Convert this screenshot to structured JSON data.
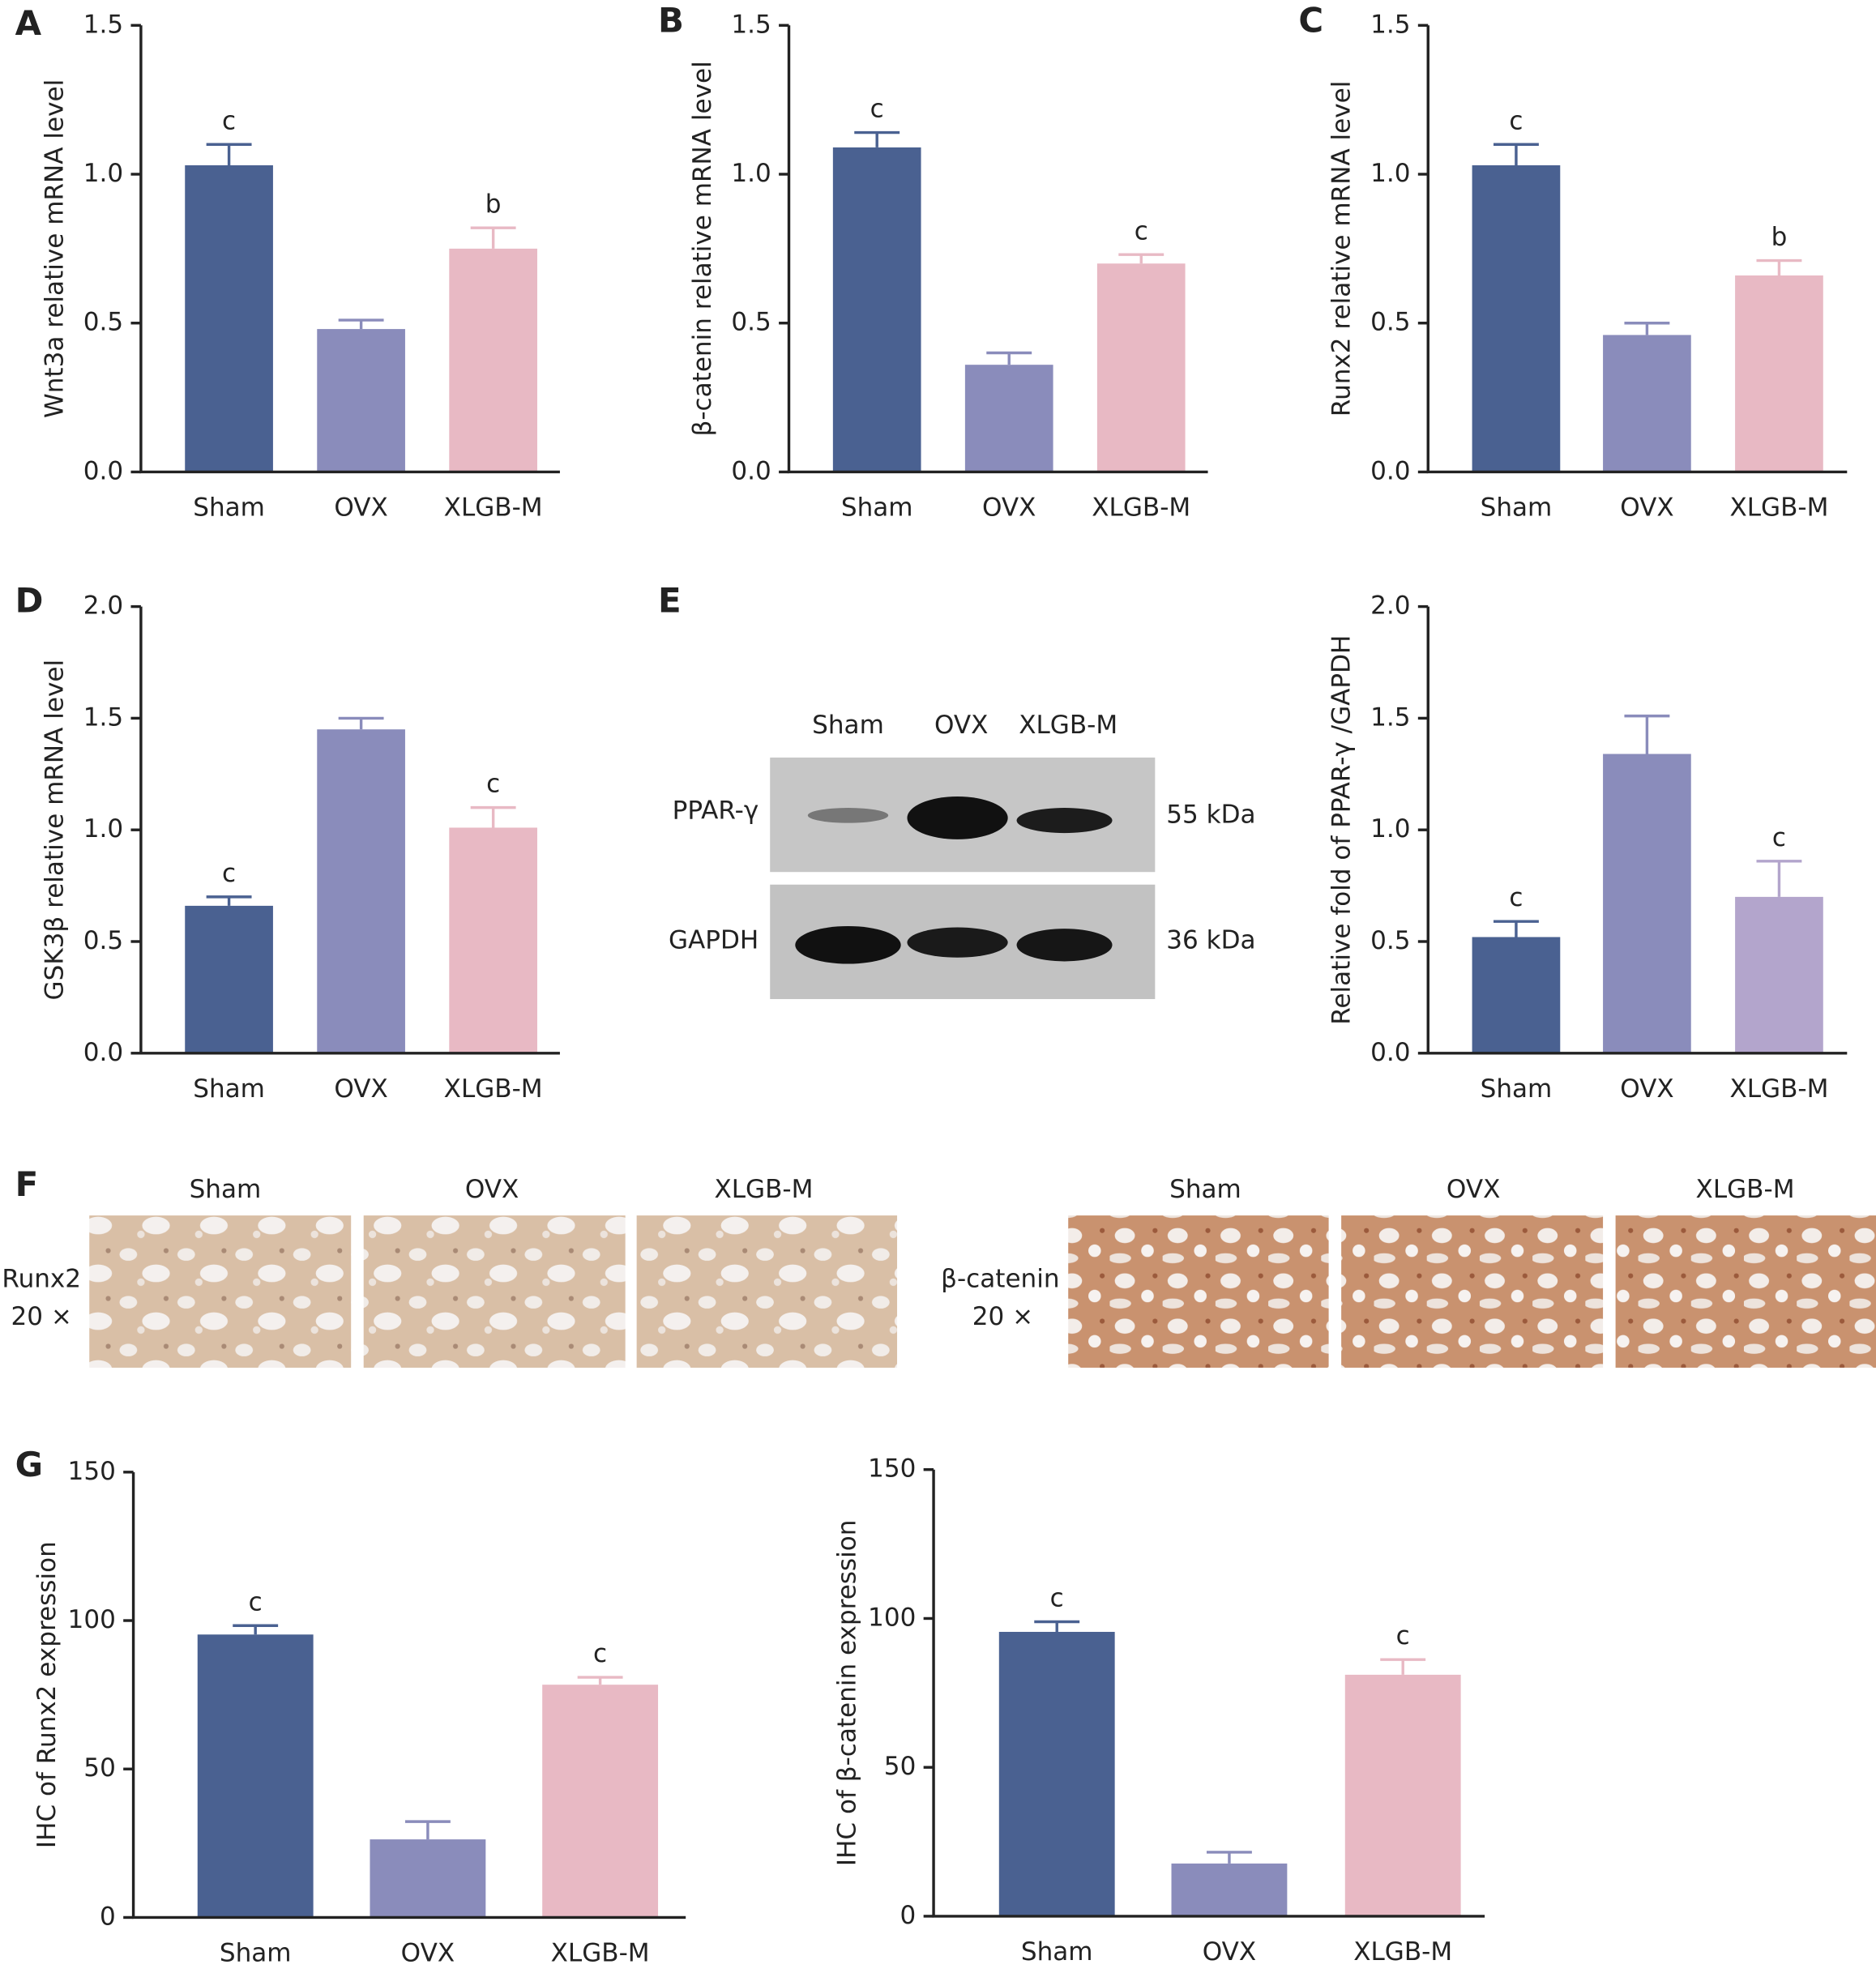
{
  "panel_labels": [
    "A",
    "B",
    "C",
    "D",
    "E",
    "F",
    "G"
  ],
  "chart_data": [
    {
      "type": "bar",
      "y_label": "Wnt3a relative mRNA level",
      "categories": [
        "Sham",
        "OVX",
        "XLGB-M"
      ],
      "values": [
        1.03,
        0.48,
        0.75
      ],
      "errors": [
        0.07,
        0.03,
        0.07
      ],
      "colors": [
        "#4a6191",
        "#8a8cbb",
        "#e8b9c4"
      ],
      "annotations": [
        "c",
        null,
        "b"
      ],
      "ylim": [
        0,
        1.5
      ],
      "yticks": [
        {
          "value": 0,
          "label": "0.0"
        },
        0.5,
        {
          "value": 1,
          "label": "1.0"
        },
        1.5
      ]
    },
    {
      "type": "bar",
      "y_label": "β-catenin relative mRNA level",
      "categories": [
        "Sham",
        "OVX",
        "XLGB-M"
      ],
      "values": [
        1.09,
        0.36,
        0.7
      ],
      "errors": [
        0.05,
        0.04,
        0.03
      ],
      "colors": [
        "#4a6191",
        "#8a8cbb",
        "#e8b9c4"
      ],
      "annotations": [
        "c",
        null,
        "c"
      ],
      "ylim": [
        0,
        1.5
      ],
      "yticks": [
        {
          "value": 0,
          "label": "0.0"
        },
        0.5,
        {
          "value": 1,
          "label": "1.0"
        },
        1.5
      ]
    },
    {
      "type": "bar",
      "y_label": "Runx2 relative mRNA level",
      "categories": [
        "Sham",
        "OVX",
        "XLGB-M"
      ],
      "values": [
        1.03,
        0.46,
        0.66
      ],
      "errors": [
        0.07,
        0.04,
        0.05
      ],
      "colors": [
        "#4a6191",
        "#8a8cbb",
        "#e8b9c4"
      ],
      "annotations": [
        "c",
        null,
        "b"
      ],
      "ylim": [
        0,
        1.5
      ],
      "yticks": [
        {
          "value": 0,
          "label": "0.0"
        },
        0.5,
        {
          "value": 1,
          "label": "1.0"
        },
        1.5
      ]
    },
    {
      "type": "bar",
      "y_label": "GSK3β relative mRNA level",
      "categories": [
        "Sham",
        "OVX",
        "XLGB-M"
      ],
      "values": [
        0.66,
        1.45,
        1.01
      ],
      "errors": [
        0.04,
        0.05,
        0.09
      ],
      "colors": [
        "#4a6191",
        "#8a8cbb",
        "#e8b9c4"
      ],
      "annotations": [
        "c",
        null,
        "c"
      ],
      "ylim": [
        0,
        2
      ],
      "yticks": [
        {
          "value": 0,
          "label": "0.0"
        },
        0.5,
        {
          "value": 1,
          "label": "1.0"
        },
        1.5,
        {
          "value": 2,
          "label": "2.0"
        }
      ]
    },
    {
      "type": "bar",
      "y_label": "Relative fold of PPAR-γ /GAPDH",
      "categories": [
        "Sham",
        "OVX",
        "XLGB-M"
      ],
      "values": [
        0.52,
        1.34,
        0.7
      ],
      "errors": [
        0.07,
        0.17,
        0.16
      ],
      "colors": [
        "#4a6191",
        "#8a8cbb",
        "#b3a5cc"
      ],
      "annotations": [
        "c",
        null,
        "c"
      ],
      "ylim": [
        0,
        2
      ],
      "yticks": [
        {
          "value": 0,
          "label": "0.0"
        },
        0.5,
        {
          "value": 1,
          "label": "1.0"
        },
        1.5,
        {
          "value": 2,
          "label": "2.0"
        }
      ]
    },
    {
      "type": "bar",
      "y_label": "IHC of Runx2 expression",
      "categories": [
        "Sham",
        "OVX",
        "XLGB-M"
      ],
      "values": [
        95.3,
        26.3,
        78.4
      ],
      "errors": [
        3,
        6,
        2.5
      ],
      "colors": [
        "#4a6191",
        "#8a8cbb",
        "#e8b9c4"
      ],
      "annotations": [
        "c",
        null,
        "c"
      ],
      "ylim": [
        0,
        150
      ],
      "yticks": [
        0,
        50,
        100,
        150
      ]
    },
    {
      "type": "bar",
      "y_label": "IHC of β-catenin expression",
      "categories": [
        "Sham",
        "OVX",
        "XLGB-M"
      ],
      "values": [
        95.5,
        17.7,
        81.1
      ],
      "errors": [
        3.4,
        3.8,
        5.1
      ],
      "colors": [
        "#4a6191",
        "#8a8cbb",
        "#e8b9c4"
      ],
      "annotations": [
        "c",
        null,
        "c"
      ],
      "ylim": [
        0,
        150
      ],
      "yticks": [
        0,
        50,
        100,
        150
      ]
    }
  ],
  "western_blot": {
    "lanes": [
      "Sham",
      "OVX",
      "XLGB-M"
    ],
    "rows": [
      {
        "protein": "PPAR-γ",
        "size": "55 kDa"
      },
      {
        "protein": "GAPDH",
        "size": "36 kDa"
      }
    ]
  },
  "ihc": {
    "groups": [
      "Sham",
      "OVX",
      "XLGB-M"
    ],
    "stains": [
      {
        "marker": "Runx2",
        "magnification": "20 ×"
      },
      {
        "marker": "β-catenin",
        "magnification": "20 ×"
      }
    ]
  }
}
